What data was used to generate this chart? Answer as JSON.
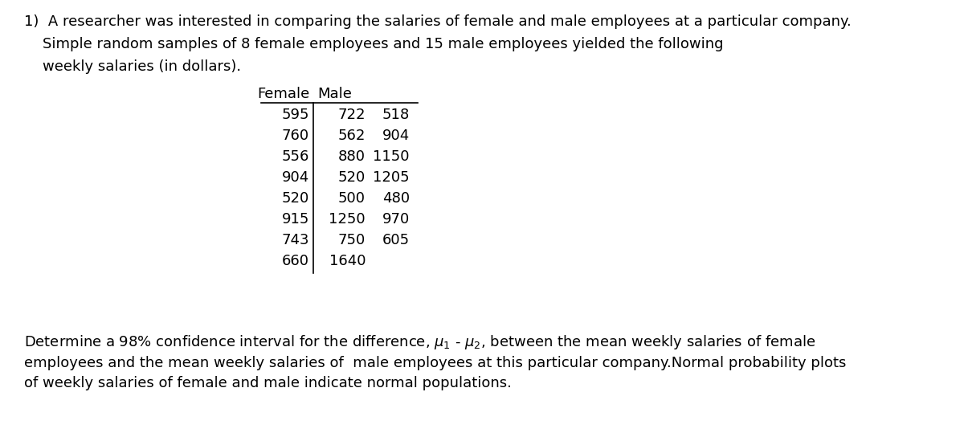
{
  "background_color": "#ffffff",
  "text_color": "#000000",
  "intro_line1": "1)  A researcher was interested in comparing the salaries of female and male employees at a particular company.",
  "intro_line2": "    Simple random samples of 8 female employees and 15 male employees yielded the following",
  "intro_line3": "    weekly salaries (in dollars).",
  "header_female": "Female",
  "header_male": "Male",
  "female_data": [
    595,
    760,
    556,
    904,
    520,
    915,
    743,
    660
  ],
  "male_col1": [
    722,
    562,
    880,
    520,
    500,
    1250,
    750,
    1640
  ],
  "male_col2": [
    518,
    904,
    1150,
    1205,
    480,
    970,
    605,
    ""
  ],
  "footer_line1_plain": "Determine a 98% confidence interval for the difference, ",
  "footer_line1_mid": " - ",
  "footer_line1_end": ", between the mean weekly salaries of female",
  "footer_line2": "employees and the mean weekly salaries of  male employees at this particular company.Normal probability plots",
  "footer_line3": "of weekly salaries of female and male indicate normal populations.",
  "font_size": 13.0
}
